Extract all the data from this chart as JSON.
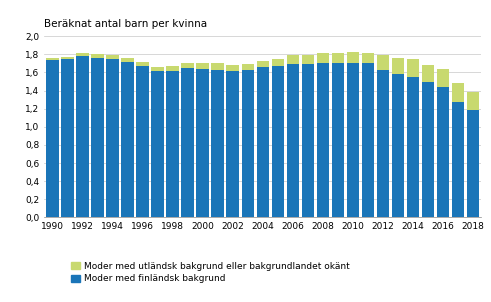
{
  "years": [
    1990,
    1991,
    1992,
    1993,
    1994,
    1995,
    1996,
    1997,
    1998,
    1999,
    2000,
    2001,
    2002,
    2003,
    2004,
    2005,
    2006,
    2007,
    2008,
    2009,
    2010,
    2011,
    2012,
    2013,
    2014,
    2015,
    2016,
    2017,
    2018
  ],
  "finnish": [
    1.74,
    1.75,
    1.78,
    1.76,
    1.75,
    1.72,
    1.67,
    1.62,
    1.62,
    1.65,
    1.64,
    1.63,
    1.62,
    1.63,
    1.66,
    1.67,
    1.69,
    1.69,
    1.71,
    1.71,
    1.71,
    1.7,
    1.63,
    1.58,
    1.55,
    1.49,
    1.44,
    1.27,
    1.19
  ],
  "foreign": [
    0.02,
    0.02,
    0.04,
    0.04,
    0.04,
    0.04,
    0.05,
    0.04,
    0.05,
    0.06,
    0.07,
    0.07,
    0.06,
    0.06,
    0.07,
    0.08,
    0.1,
    0.1,
    0.1,
    0.11,
    0.12,
    0.12,
    0.16,
    0.18,
    0.2,
    0.19,
    0.2,
    0.21,
    0.2
  ],
  "color_finnish": "#1a75b8",
  "color_foreign": "#c8d96f",
  "title": "Beräknat antal barn per kvinna",
  "legend_foreign": "Moder med utländsk bakgrund eller bakgrundlandet okänt",
  "legend_finnish": "Moder med finländsk bakgrund",
  "ylim": [
    0.0,
    2.0
  ],
  "yticks": [
    0.0,
    0.2,
    0.4,
    0.6,
    0.8,
    1.0,
    1.2,
    1.4,
    1.6,
    1.8,
    2.0
  ],
  "background_color": "#ffffff",
  "grid_color": "#c8c8c8"
}
